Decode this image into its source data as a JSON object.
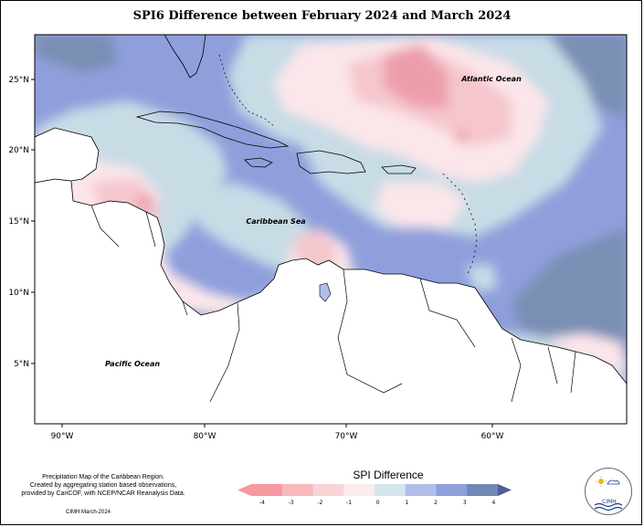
{
  "title": "SPI6 Difference between February 2024 and March 2024",
  "labels": {
    "atlantic": "Atlantic Ocean",
    "caribbean": "Caribbean Sea",
    "pacific": "Pacific Ocean"
  },
  "axes": {
    "lat_ticks": [
      "25°N",
      "20°N",
      "15°N",
      "10°N",
      "5°N"
    ],
    "lon_ticks": [
      "90°W",
      "80°W",
      "70°W",
      "60°W"
    ]
  },
  "credits": {
    "line1": "Precipitation Map of the Caribbean Region.",
    "line2": "Created by aggregating station based observations,",
    "line3": "provided by CariCOF, with NCEP/NCAR Reanalysis Data.",
    "date": "CIMH March-2024"
  },
  "legend": {
    "title": "SPI Difference",
    "ticks": [
      "-4",
      "-3",
      "-2",
      "-1",
      "0",
      "1",
      "2",
      "3",
      "4"
    ],
    "colors": [
      "#f59aa0",
      "#f7b9bc",
      "#f8d4d7",
      "#fbebed",
      "#d4e5ee",
      "#b0bfe9",
      "#8f9fdc",
      "#6e8ab4",
      "#4e5f92"
    ]
  },
  "logo": {
    "text": "CIMH",
    "icon": "cimh-logo-icon"
  },
  "colors": {
    "base": "#8f9fdc",
    "slate": "#7a8fb4",
    "light_blue": "#c8dce6",
    "pale_pink": "#fbe6ea",
    "pink": "#f5c6cd",
    "deep_pink": "#ec9fab",
    "land": "#ffffff"
  }
}
